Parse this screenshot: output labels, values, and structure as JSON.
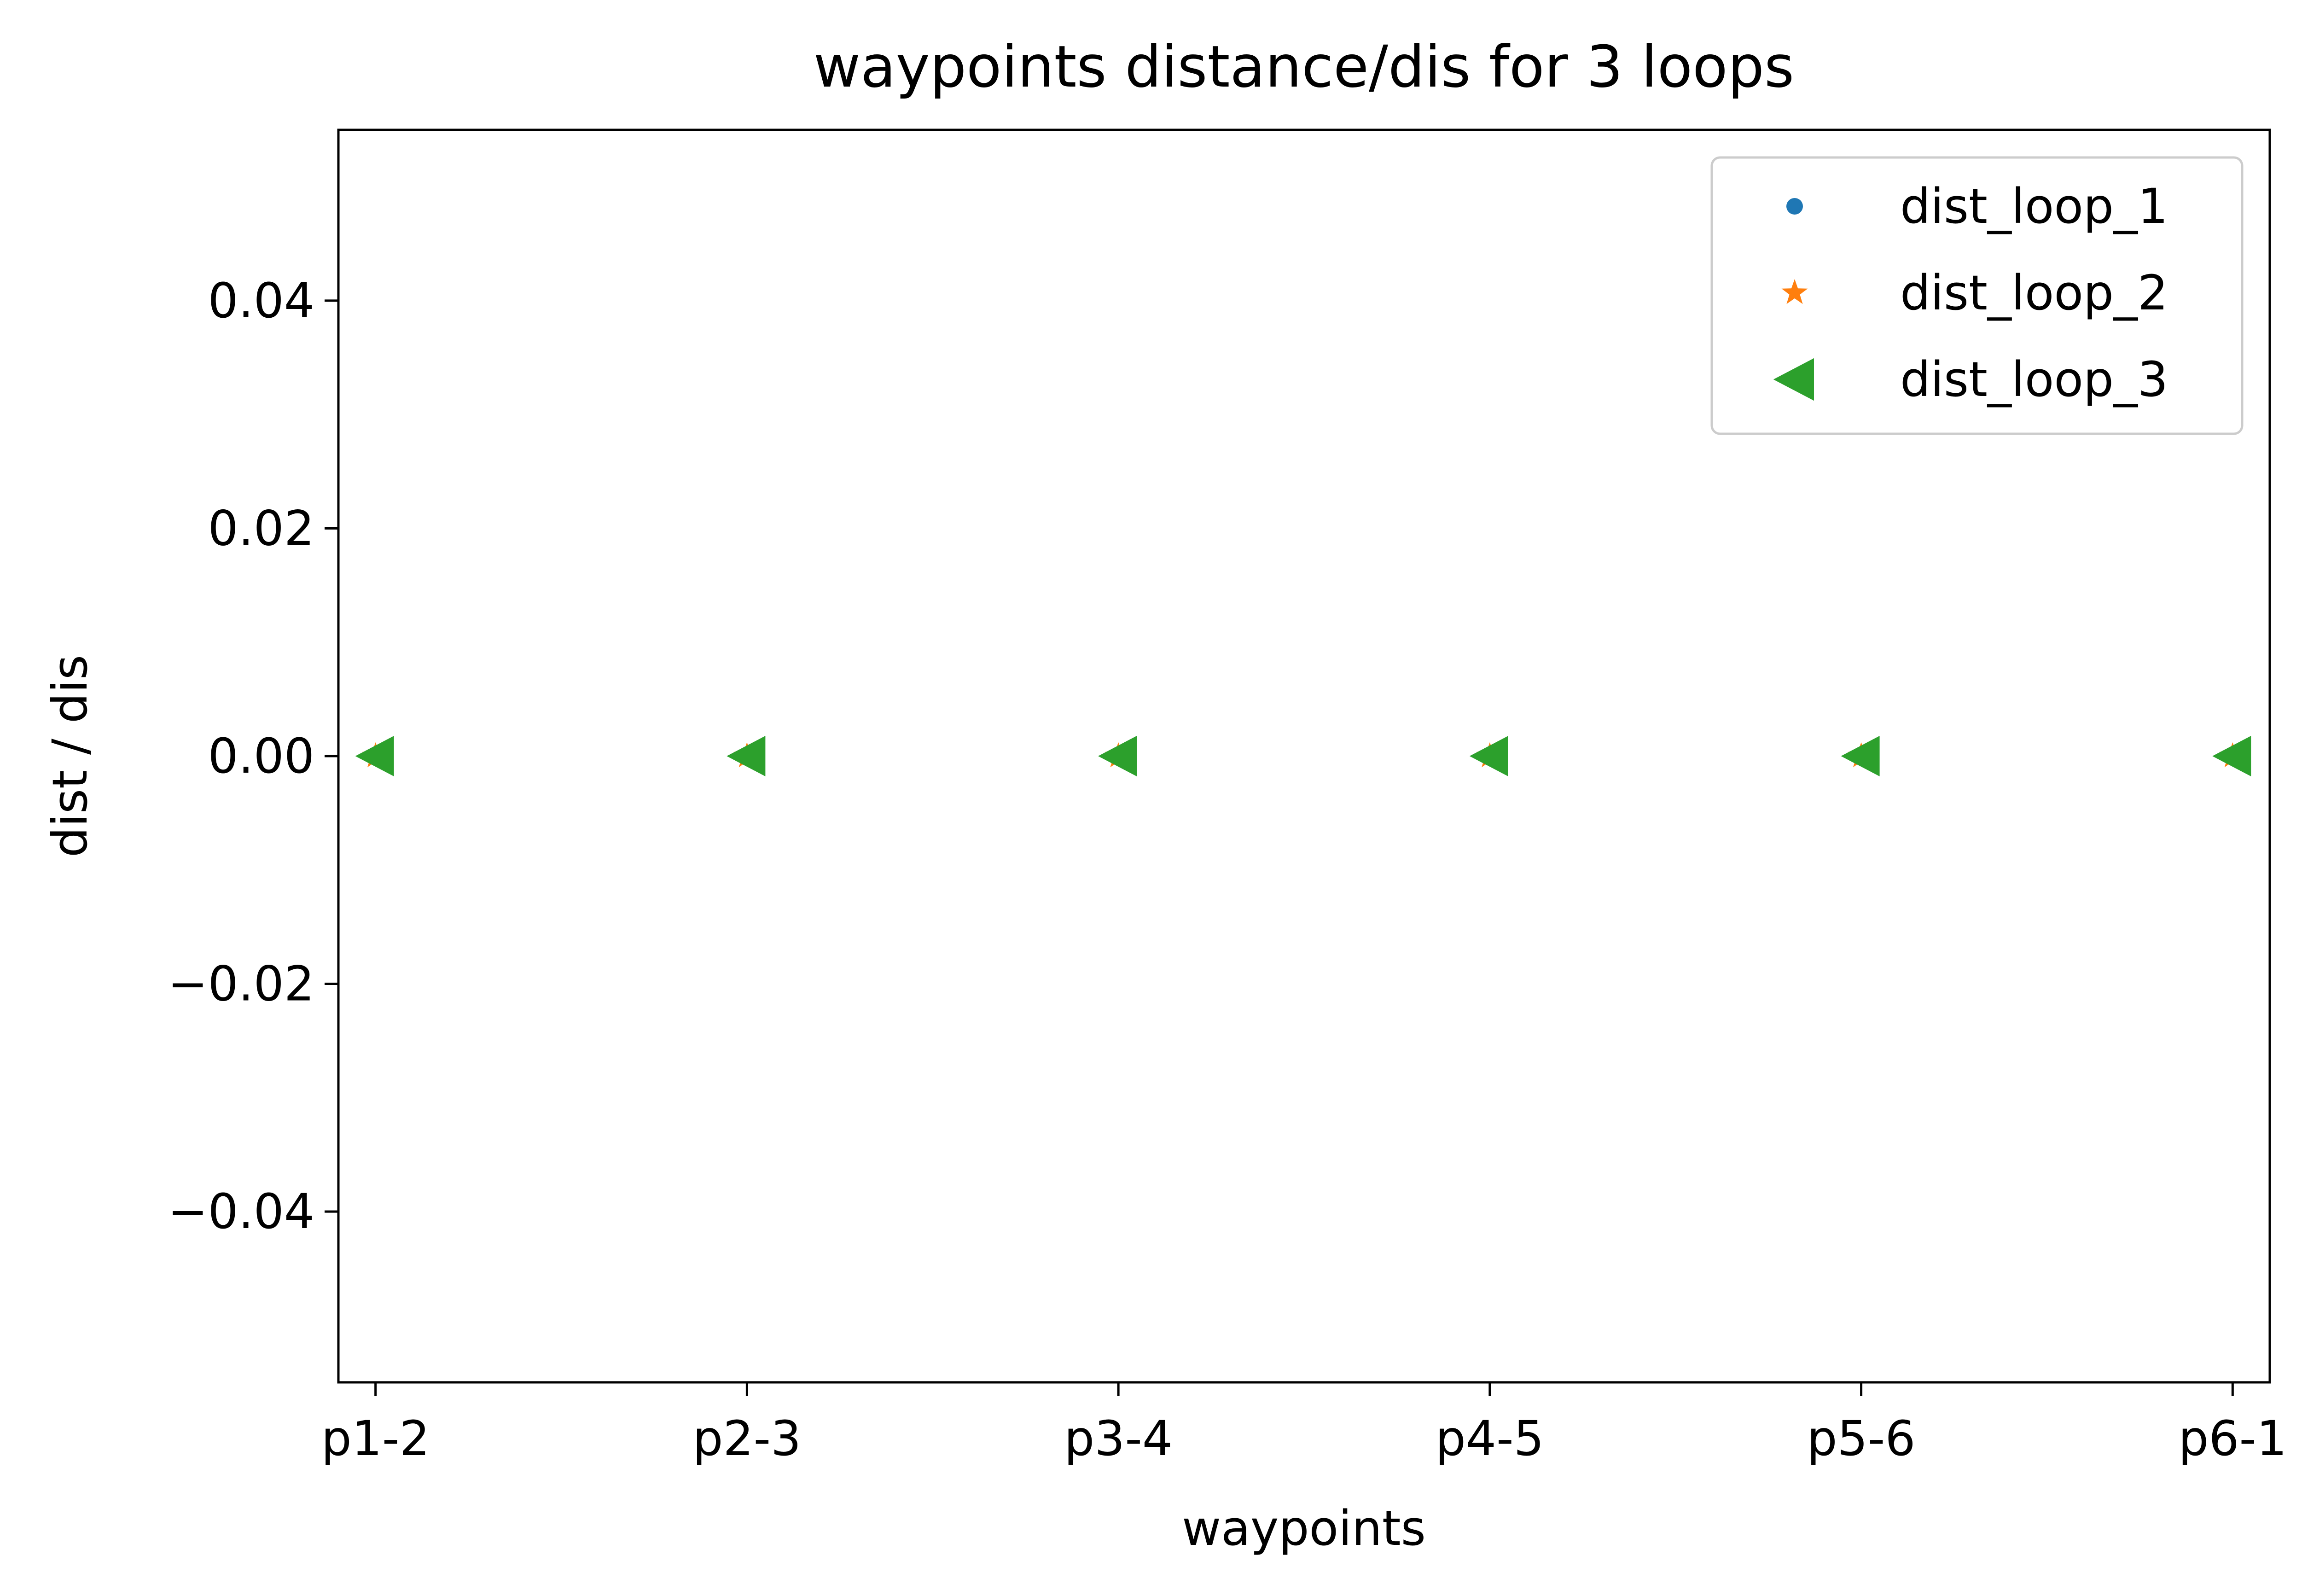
{
  "chart_data": {
    "type": "scatter",
    "title": "waypoints distance/dis for 3 loops",
    "xlabel": "waypoints",
    "ylabel": "dist / dis",
    "categories": [
      "p1-2",
      "p2-3",
      "p3-4",
      "p4-5",
      "p5-6",
      "p6-1"
    ],
    "ylim": [
      -0.055,
      0.055
    ],
    "yticks": [
      -0.04,
      -0.02,
      0.0,
      0.02,
      0.04
    ],
    "ytick_labels": [
      "−0.04",
      "−0.02",
      "0.00",
      "0.02",
      "0.04"
    ],
    "grid": false,
    "legend_position": "top-right",
    "series": [
      {
        "name": "dist_loop_1",
        "marker": "circle",
        "color": "#1f77b4",
        "values": [
          0,
          0,
          0,
          0,
          0,
          0
        ]
      },
      {
        "name": "dist_loop_2",
        "marker": "star",
        "color": "#ff7f0e",
        "values": [
          0,
          0,
          0,
          0,
          0,
          0
        ]
      },
      {
        "name": "dist_loop_3",
        "marker": "triangle-left",
        "color": "#2ca02c",
        "values": [
          0,
          0,
          0,
          0,
          0,
          0
        ]
      }
    ]
  }
}
